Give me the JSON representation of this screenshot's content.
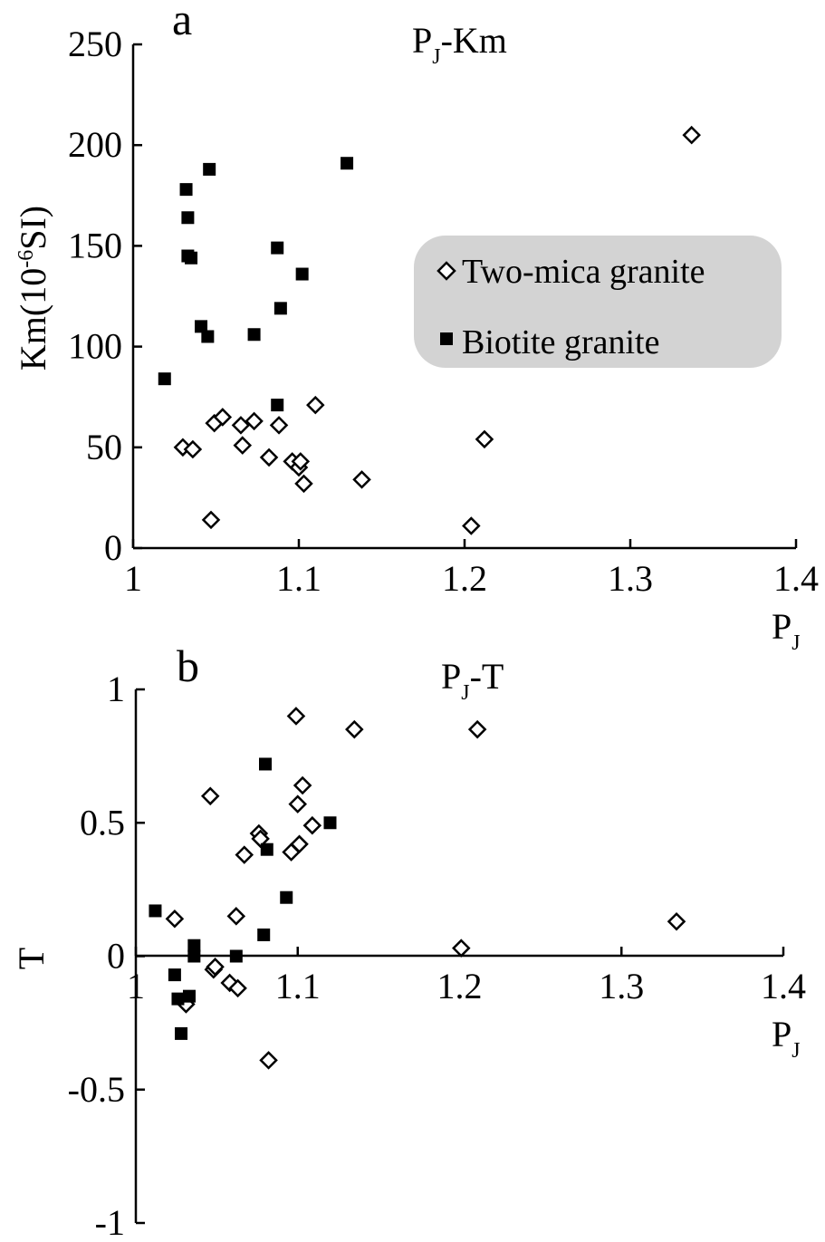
{
  "chart_data": [
    {
      "type": "scatter",
      "panel_label": "a",
      "title": {
        "main": "P",
        "sub": "J",
        "rest": "-Km"
      },
      "xlabel": {
        "main": "P",
        "sub": "J"
      },
      "ylabel": {
        "pre": "Km(10",
        "sup": "-6",
        "post": "SI)"
      },
      "xlim": [
        1,
        1.4
      ],
      "ylim": [
        0,
        250
      ],
      "xticks": [
        "1",
        "1.1",
        "1.2",
        "1.3",
        "1.4"
      ],
      "yticks": [
        "0",
        "50",
        "100",
        "150",
        "200",
        "250"
      ],
      "legend": {
        "placement": "right",
        "background": "#d3d3d3",
        "entries": [
          {
            "label": "Two-mica granite",
            "marker": "open-diamond"
          },
          {
            "label": "Biotite granite",
            "marker": "filled-square"
          }
        ]
      },
      "series": [
        {
          "name": "Two-mica granite",
          "marker": "open-diamond",
          "x": [
            1.03,
            1.036,
            1.047,
            1.049,
            1.054,
            1.065,
            1.066,
            1.073,
            1.082,
            1.088,
            1.096,
            1.1,
            1.101,
            1.103,
            1.11,
            1.138,
            1.204,
            1.212,
            1.337
          ],
          "y": [
            50,
            49,
            14,
            62,
            65,
            61,
            51,
            63,
            45,
            61,
            43,
            40,
            43,
            32,
            71,
            34,
            11,
            54,
            205
          ]
        },
        {
          "name": "Biotite granite",
          "marker": "filled-square",
          "x": [
            1.019,
            1.032,
            1.033,
            1.033,
            1.035,
            1.041,
            1.045,
            1.046,
            1.073,
            1.087,
            1.087,
            1.089,
            1.102,
            1.129
          ],
          "y": [
            84,
            178,
            164,
            145,
            144,
            110,
            105,
            188,
            106,
            149,
            71,
            119,
            136,
            191
          ]
        }
      ]
    },
    {
      "type": "scatter",
      "panel_label": "b",
      "title": {
        "main": "P",
        "sub": "J",
        "rest": "-T"
      },
      "xlabel": {
        "main": "P",
        "sub": "J"
      },
      "ylabel": "T",
      "xlim": [
        1,
        1.4
      ],
      "ylim": [
        -1,
        1
      ],
      "xticks": [
        "1",
        "1.1",
        "1.2",
        "1.3",
        "1.4"
      ],
      "yticks": [
        "-1",
        "-0.5",
        "0",
        "0.5",
        "1"
      ],
      "series": [
        {
          "name": "Two-mica granite",
          "marker": "open-diamond",
          "x": [
            1.024,
            1.031,
            1.046,
            1.048,
            1.049,
            1.058,
            1.062,
            1.063,
            1.067,
            1.076,
            1.077,
            1.082,
            1.096,
            1.099,
            1.1,
            1.101,
            1.103,
            1.109,
            1.135,
            1.201,
            1.211,
            1.334
          ],
          "y": [
            0.14,
            -0.18,
            0.6,
            -0.05,
            -0.04,
            -0.1,
            0.15,
            -0.12,
            0.38,
            0.46,
            0.44,
            -0.39,
            0.39,
            0.9,
            0.57,
            0.42,
            0.64,
            0.49,
            0.85,
            0.03,
            0.85,
            0.13
          ]
        },
        {
          "name": "Biotite granite",
          "marker": "filled-square",
          "x": [
            1.012,
            1.024,
            1.026,
            1.028,
            1.033,
            1.036,
            1.036,
            1.062,
            1.079,
            1.08,
            1.081,
            1.093,
            1.12
          ],
          "y": [
            0.17,
            -0.07,
            -0.16,
            -0.29,
            -0.15,
            0.04,
            0.0,
            0.0,
            0.08,
            0.72,
            0.4,
            0.22,
            0.5
          ]
        }
      ]
    }
  ]
}
